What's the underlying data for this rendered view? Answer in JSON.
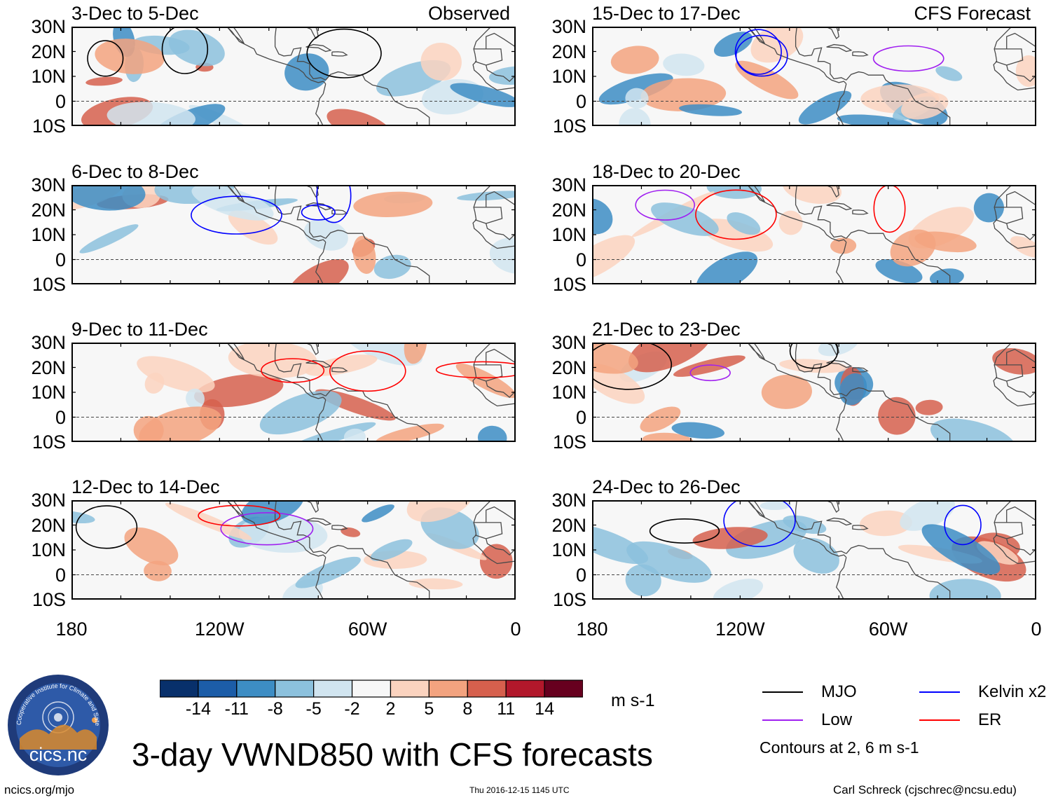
{
  "panels": [
    {
      "title": "3-Dec to 5-Dec",
      "tag": "Observed",
      "seed": 1
    },
    {
      "title": "6-Dec to 8-Dec",
      "tag": "",
      "seed": 2
    },
    {
      "title": "9-Dec to 11-Dec",
      "tag": "",
      "seed": 3
    },
    {
      "title": "12-Dec to 14-Dec",
      "tag": "",
      "seed": 4
    },
    {
      "title": "15-Dec to 17-Dec",
      "tag": "CFS Forecast",
      "seed": 5
    },
    {
      "title": "18-Dec to 20-Dec",
      "tag": "",
      "seed": 6
    },
    {
      "title": "21-Dec to 23-Dec",
      "tag": "",
      "seed": 7
    },
    {
      "title": "24-Dec to 26-Dec",
      "tag": "",
      "seed": 8
    }
  ],
  "lat_labels": [
    "30N",
    "20N",
    "10N",
    "0",
    "10S"
  ],
  "lon_labels": [
    "180",
    "120W",
    "60W",
    "0"
  ],
  "colorbar": {
    "colors": [
      "#08306b",
      "#1c5da8",
      "#3d8dc4",
      "#8cc1dd",
      "#d1e5f0",
      "#f7f7f7",
      "#fbd3bf",
      "#f3a37f",
      "#d6604d",
      "#b2182b",
      "#67001f"
    ],
    "labels": [
      "-14",
      "-11",
      "-8",
      "-5",
      "-2",
      "2",
      "5",
      "8",
      "11",
      "14"
    ],
    "units": "m s-1"
  },
  "legend": {
    "items": [
      {
        "label": "MJO",
        "color": "#000000"
      },
      {
        "label": "Kelvin x2",
        "color": "#0000ff"
      },
      {
        "label": "Low",
        "color": "#a020f0"
      },
      {
        "label": "ER",
        "color": "#ff0000"
      }
    ],
    "note": "Contours at 2, 6 m s-1"
  },
  "main_title": "3-day VWND850 with CFS forecasts",
  "logo_text": "cics.nc",
  "logo_ring_text": "Cooperative Institute for Climate and Satellites",
  "footer": {
    "left": "ncics.org/mjo",
    "center": "Thu 2016-12-15 1145 UTC",
    "right": "Carl Schreck (cjschrec@ncsu.edu)"
  }
}
